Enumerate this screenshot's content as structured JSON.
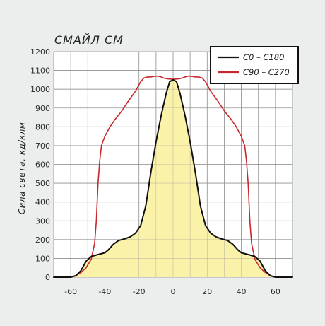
{
  "chart_data": {
    "type": "line",
    "title": "СМАЙЛ СМ",
    "ylabel": "Сила света, кд/клм",
    "xlabel": "",
    "xlim": [
      -70,
      70
    ],
    "ylim": [
      0,
      1200
    ],
    "x_ticks": [
      -60,
      -40,
      -20,
      0,
      20,
      40,
      60
    ],
    "y_ticks": [
      0,
      100,
      200,
      300,
      400,
      500,
      600,
      700,
      800,
      900,
      1000,
      1100,
      1200
    ],
    "grid": true,
    "legend_position": "top-right",
    "series": [
      {
        "name": "C0 – C180",
        "color": "#111111",
        "fill": "#fbf2a9",
        "x": [
          -70,
          -60,
          -57,
          -54,
          -51,
          -48,
          -45,
          -42,
          -40,
          -38,
          -35,
          -32,
          -30,
          -28,
          -25,
          -22,
          -19,
          -16,
          -13,
          -10,
          -7,
          -4,
          -2,
          0,
          2,
          4,
          7,
          10,
          13,
          16,
          19,
          22,
          25,
          28,
          30,
          32,
          35,
          38,
          40,
          42,
          45,
          48,
          51,
          54,
          57,
          60,
          70
        ],
        "y": [
          0,
          0,
          8,
          35,
          85,
          110,
          118,
          125,
          130,
          145,
          175,
          195,
          200,
          205,
          215,
          235,
          275,
          380,
          560,
          720,
          860,
          980,
          1040,
          1050,
          1040,
          980,
          860,
          720,
          560,
          380,
          275,
          235,
          215,
          205,
          200,
          195,
          175,
          145,
          130,
          125,
          118,
          110,
          85,
          35,
          8,
          0,
          0
        ]
      },
      {
        "name": "C90 – C270",
        "color": "#c8282d",
        "x": [
          -70,
          -60,
          -57,
          -54,
          -51,
          -48,
          -46,
          -45,
          -44,
          -43,
          -42,
          -40,
          -37,
          -34,
          -30,
          -26,
          -22,
          -19,
          -17,
          -15,
          -13,
          -11,
          -9,
          -7,
          -5,
          -3,
          0,
          3,
          5,
          7,
          9,
          11,
          13,
          15,
          17,
          19,
          22,
          26,
          30,
          34,
          37,
          40,
          42,
          43,
          44,
          45,
          46,
          48,
          51,
          54,
          57,
          60,
          70
        ],
        "y": [
          0,
          0,
          8,
          25,
          50,
          95,
          180,
          300,
          500,
          620,
          700,
          750,
          800,
          840,
          885,
          940,
          990,
          1040,
          1060,
          1065,
          1065,
          1068,
          1070,
          1065,
          1058,
          1055,
          1053,
          1055,
          1058,
          1065,
          1070,
          1068,
          1065,
          1065,
          1060,
          1040,
          990,
          940,
          885,
          840,
          800,
          750,
          700,
          620,
          500,
          300,
          180,
          95,
          50,
          25,
          8,
          0,
          0
        ]
      }
    ]
  }
}
